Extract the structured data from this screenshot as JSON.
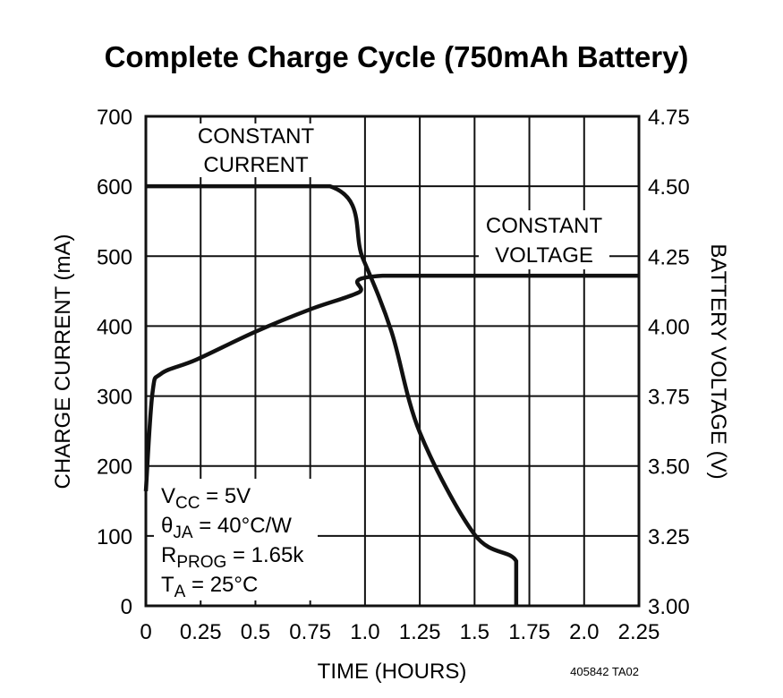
{
  "chart_data": {
    "type": "line",
    "title": "Complete Charge Cycle (750mAh Battery)",
    "xlabel": "TIME (HOURS)",
    "ylabel": "CHARGE CURRENT (mA)",
    "y2label": "BATTERY VOLTAGE (V)",
    "xlim": [
      0,
      2.25
    ],
    "ylim": [
      0,
      700
    ],
    "y2lim": [
      3.0,
      4.75
    ],
    "grid": true,
    "x_ticks": [
      "0",
      "0.25",
      "0.5",
      "0.75",
      "1.0",
      "1.25",
      "1.5",
      "1.75",
      "2.0",
      "2.25"
    ],
    "y_ticks": [
      "0",
      "100",
      "200",
      "300",
      "400",
      "500",
      "600",
      "700"
    ],
    "y2_ticks": [
      "3.00",
      "3.25",
      "3.50",
      "3.75",
      "4.00",
      "4.25",
      "4.50",
      "4.75"
    ],
    "series": [
      {
        "name": "Charge Current (mA)",
        "axis": "left",
        "x": [
          0,
          0.84,
          0.99,
          1.12,
          1.25,
          1.5,
          1.69,
          1.69
        ],
        "y": [
          600,
          600,
          497,
          393,
          248,
          102,
          64,
          0
        ]
      },
      {
        "name": "Battery Voltage (V)",
        "axis": "right",
        "x": [
          0,
          0.03,
          0.07,
          0.23,
          0.5,
          0.75,
          0.97,
          1.08,
          2.25
        ],
        "y": [
          3.41,
          3.76,
          3.83,
          3.88,
          3.98,
          4.06,
          4.12,
          4.18,
          4.18
        ]
      }
    ],
    "annotations": {
      "constant_current": [
        "CONSTANT",
        "CURRENT"
      ],
      "constant_voltage": [
        "CONSTANT",
        "VOLTAGE"
      ],
      "conditions": {
        "vcc": {
          "main": "V",
          "sub": "CC",
          "rest": " = 5V"
        },
        "theta": {
          "main": "θ",
          "sub": "JA",
          "rest": " = 40°C/W"
        },
        "rprog": {
          "main": "R",
          "sub": "PROG",
          "rest": " = 1.65k"
        },
        "ta": {
          "main": "T",
          "sub": "A",
          "rest": " = 25°C"
        }
      },
      "figure_id": "405842 TA02"
    }
  }
}
